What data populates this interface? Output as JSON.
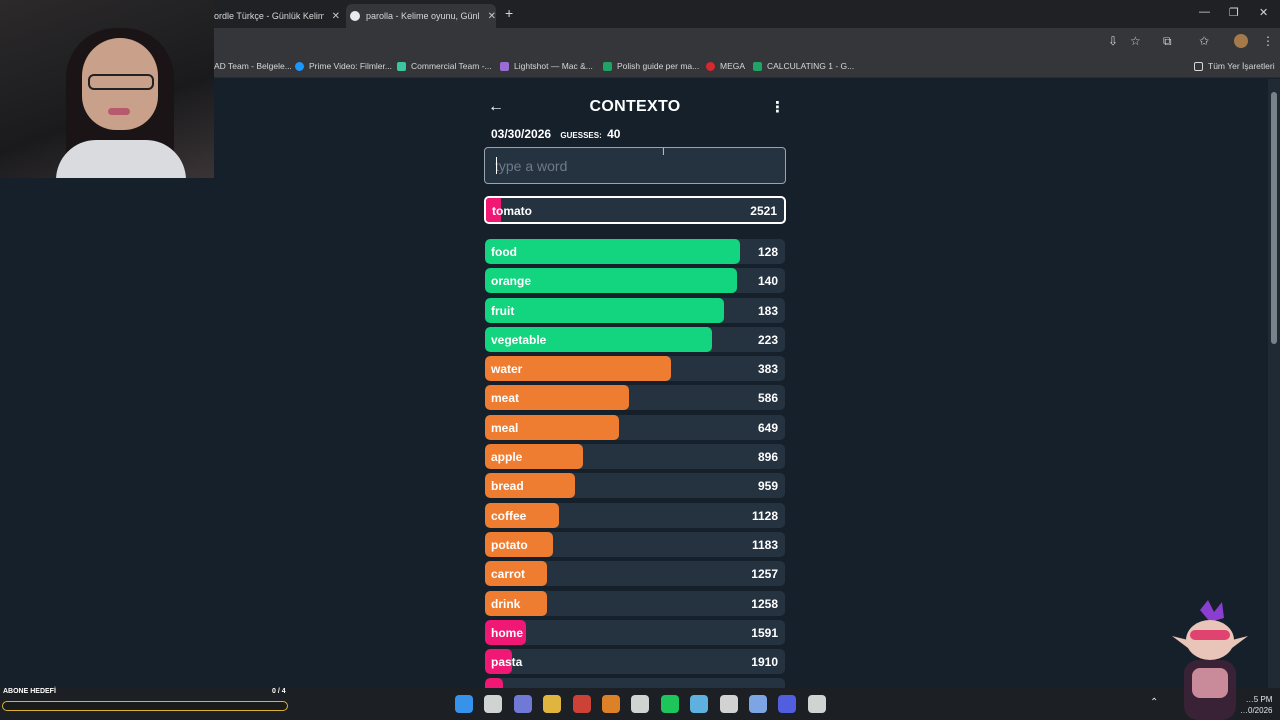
{
  "browser": {
    "tabs": [
      {
        "title": "ordle Türkçe - Günlük Kelime",
        "close": "✕"
      },
      {
        "title": "parolla - Kelime oyunu, Günlük",
        "close": "✕"
      }
    ],
    "new_tab": "+",
    "window_controls": [
      "—",
      "❐",
      "✕"
    ],
    "bookmarks": [
      {
        "label": "AD Team - Belgele...",
        "color": "#4a90d9"
      },
      {
        "label": "Prime Video: Filmler...",
        "color": "#1a98ff"
      },
      {
        "label": "Commercial Team -...",
        "color": "#3bc6a0"
      },
      {
        "label": "Lightshot — Mac &...",
        "color": "#9b6bd6"
      },
      {
        "label": "Polish guide per ma...",
        "color": "#21a366"
      },
      {
        "label": "MEGA",
        "color": "#d9272e"
      },
      {
        "label": "CALCULATING 1 - G...",
        "color": "#21a366"
      }
    ],
    "bookmarks_other": "Tüm Yer İşaretleri"
  },
  "game": {
    "title": "CONTEXTO",
    "date": "03/30/2026",
    "guesses_label": "GUESSES:",
    "guesses_count": "40",
    "input_placeholder": "type a word",
    "last_guess": {
      "word": "tomato",
      "rank": 2521,
      "fill": 0.05,
      "color": "#f01874"
    },
    "guesses": [
      {
        "word": "food",
        "rank": 128,
        "fill": 0.85,
        "color": "#13d47f"
      },
      {
        "word": "orange",
        "rank": 140,
        "fill": 0.84,
        "color": "#13d47f"
      },
      {
        "word": "fruit",
        "rank": 183,
        "fill": 0.795,
        "color": "#13d47f"
      },
      {
        "word": "vegetable",
        "rank": 223,
        "fill": 0.755,
        "color": "#13d47f"
      },
      {
        "word": "water",
        "rank": 383,
        "fill": 0.62,
        "color": "#ef7d31"
      },
      {
        "word": "meat",
        "rank": 586,
        "fill": 0.48,
        "color": "#ef7d31"
      },
      {
        "word": "meal",
        "rank": 649,
        "fill": 0.445,
        "color": "#ef7d31"
      },
      {
        "word": "apple",
        "rank": 896,
        "fill": 0.325,
        "color": "#ef7d31"
      },
      {
        "word": "bread",
        "rank": 959,
        "fill": 0.3,
        "color": "#ef7d31"
      },
      {
        "word": "coffee",
        "rank": 1128,
        "fill": 0.245,
        "color": "#ef7d31"
      },
      {
        "word": "potato",
        "rank": 1183,
        "fill": 0.225,
        "color": "#ef7d31"
      },
      {
        "word": "carrot",
        "rank": 1257,
        "fill": 0.205,
        "color": "#ef7d31"
      },
      {
        "word": "drink",
        "rank": 1258,
        "fill": 0.205,
        "color": "#ef7d31"
      },
      {
        "word": "home",
        "rank": 1591,
        "fill": 0.135,
        "color": "#f01874"
      },
      {
        "word": "pasta",
        "rank": 1910,
        "fill": 0.09,
        "color": "#f01874"
      },
      {
        "word": "",
        "rank": "",
        "fill": 0.06,
        "color": "#f01874"
      }
    ]
  },
  "overlay": {
    "sub_goal_label": "ABONE HEDEFİ",
    "sub_goal_count": "0 / 4",
    "sub_goal_progress": 0
  },
  "taskbar": {
    "time": "…5 PM",
    "date": "…0/2026",
    "apps": [
      {
        "name": "windows-start-icon",
        "color": "#3aa0ff"
      },
      {
        "name": "search-icon",
        "color": "#e6e6e6"
      },
      {
        "name": "teams-icon",
        "color": "#7b83eb"
      },
      {
        "name": "file-explorer-icon",
        "color": "#f5c542"
      },
      {
        "name": "chrome-icon",
        "color": "#e0463a"
      },
      {
        "name": "orange-app-icon",
        "color": "#f28c28"
      },
      {
        "name": "terminal-icon",
        "color": "#e6e6e6"
      },
      {
        "name": "spotify-icon",
        "color": "#1ed760"
      },
      {
        "name": "steam-icon",
        "color": "#66c0f4"
      },
      {
        "name": "epic-games-icon",
        "color": "#e6e6e6"
      },
      {
        "name": "network-app-icon",
        "color": "#8ab4f8"
      },
      {
        "name": "discord-icon",
        "color": "#5865f2"
      },
      {
        "name": "recording-app-icon",
        "color": "#e6e6e6"
      }
    ]
  }
}
